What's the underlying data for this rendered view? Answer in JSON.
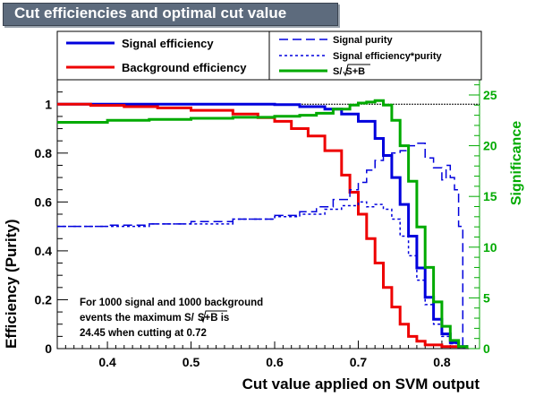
{
  "title": "Cut efficiencies and optimal cut value",
  "colors": {
    "signal": "#0000dd",
    "background": "#ee0000",
    "significance": "#00aa00",
    "title_bg": "#5d6b7d"
  },
  "legend": {
    "signal_efficiency": "Signal efficiency",
    "background_efficiency": "Background efficiency",
    "signal_purity": "Signal purity",
    "signal_eff_purity": "Signal efficiency*purity",
    "significance_label": "S/",
    "significance_root": "S+B"
  },
  "annotation": {
    "line1": "For 1000 signal and 1000 background",
    "line2a": "events the maximum S/",
    "line2b": "S+B",
    "line2c": " is",
    "line3": "24.45 when cutting at  0.72"
  },
  "chart_data": {
    "type": "line",
    "xlabel": "Cut value applied on SVM output",
    "ylabel": "Efficiency (Purity)",
    "y2label": "Significance",
    "xlim": [
      0.34,
      0.845
    ],
    "ylim": [
      0,
      1.1
    ],
    "y2lim": [
      0,
      26.5
    ],
    "xticks": [
      0.4,
      0.5,
      0.6,
      0.7,
      0.8
    ],
    "yticks": [
      0,
      0.2,
      0.4,
      0.6,
      0.8,
      1
    ],
    "y2ticks": [
      0,
      5,
      10,
      15,
      20,
      25
    ],
    "reference_line_y": 1.0,
    "series": [
      {
        "name": "Signal efficiency",
        "axis": "left",
        "x": [
          0.34,
          0.45,
          0.55,
          0.6,
          0.63,
          0.66,
          0.68,
          0.7,
          0.72,
          0.73,
          0.74,
          0.75,
          0.76,
          0.77,
          0.78,
          0.79,
          0.8,
          0.81,
          0.82,
          0.83
        ],
        "y": [
          1.0,
          1.0,
          1.0,
          0.998,
          0.99,
          0.98,
          0.96,
          0.93,
          0.86,
          0.79,
          0.7,
          0.59,
          0.46,
          0.33,
          0.21,
          0.12,
          0.06,
          0.025,
          0.008,
          0.002
        ]
      },
      {
        "name": "Background efficiency",
        "axis": "left",
        "x": [
          0.34,
          0.38,
          0.42,
          0.46,
          0.5,
          0.55,
          0.58,
          0.6,
          0.62,
          0.64,
          0.66,
          0.68,
          0.69,
          0.7,
          0.71,
          0.72,
          0.73,
          0.74,
          0.75,
          0.76,
          0.77,
          0.78,
          0.8,
          0.82
        ],
        "y": [
          1.0,
          0.995,
          0.99,
          0.985,
          0.975,
          0.96,
          0.945,
          0.93,
          0.9,
          0.87,
          0.81,
          0.71,
          0.64,
          0.55,
          0.45,
          0.35,
          0.25,
          0.17,
          0.1,
          0.05,
          0.03,
          0.015,
          0.008,
          0.003
        ]
      },
      {
        "name": "Signal purity",
        "axis": "left",
        "x": [
          0.34,
          0.4,
          0.45,
          0.5,
          0.55,
          0.6,
          0.63,
          0.65,
          0.67,
          0.69,
          0.7,
          0.71,
          0.72,
          0.73,
          0.74,
          0.75,
          0.76,
          0.77,
          0.78,
          0.79,
          0.8,
          0.805,
          0.81,
          0.815,
          0.82,
          0.825
        ],
        "y": [
          0.5,
          0.505,
          0.51,
          0.52,
          0.53,
          0.545,
          0.56,
          0.58,
          0.61,
          0.65,
          0.68,
          0.73,
          0.77,
          0.79,
          0.8,
          0.81,
          0.83,
          0.84,
          0.78,
          0.74,
          0.69,
          0.75,
          0.7,
          0.65,
          0.5,
          0.0
        ]
      },
      {
        "name": "Signal efficiency*purity",
        "axis": "left",
        "x": [
          0.34,
          0.45,
          0.55,
          0.6,
          0.63,
          0.66,
          0.68,
          0.7,
          0.71,
          0.72,
          0.73,
          0.74,
          0.75,
          0.76,
          0.77,
          0.78,
          0.79,
          0.8,
          0.81,
          0.82,
          0.83
        ],
        "y": [
          0.5,
          0.51,
          0.53,
          0.54,
          0.55,
          0.57,
          0.585,
          0.6,
          0.58,
          0.59,
          0.57,
          0.53,
          0.46,
          0.38,
          0.28,
          0.18,
          0.1,
          0.05,
          0.02,
          0.005,
          0.0
        ]
      },
      {
        "name": "S/sqrt(S+B)",
        "axis": "right",
        "x": [
          0.34,
          0.4,
          0.45,
          0.5,
          0.55,
          0.6,
          0.63,
          0.65,
          0.67,
          0.69,
          0.7,
          0.71,
          0.72,
          0.73,
          0.74,
          0.75,
          0.76,
          0.77,
          0.78,
          0.79,
          0.8,
          0.81,
          0.82,
          0.83
        ],
        "y": [
          22.3,
          22.5,
          22.6,
          22.7,
          22.8,
          22.9,
          23.0,
          23.2,
          23.6,
          24.0,
          24.2,
          24.3,
          24.45,
          24.0,
          22.5,
          20.0,
          16.5,
          12.0,
          8.0,
          4.6,
          2.2,
          0.8,
          0.2,
          0.0
        ]
      }
    ]
  }
}
